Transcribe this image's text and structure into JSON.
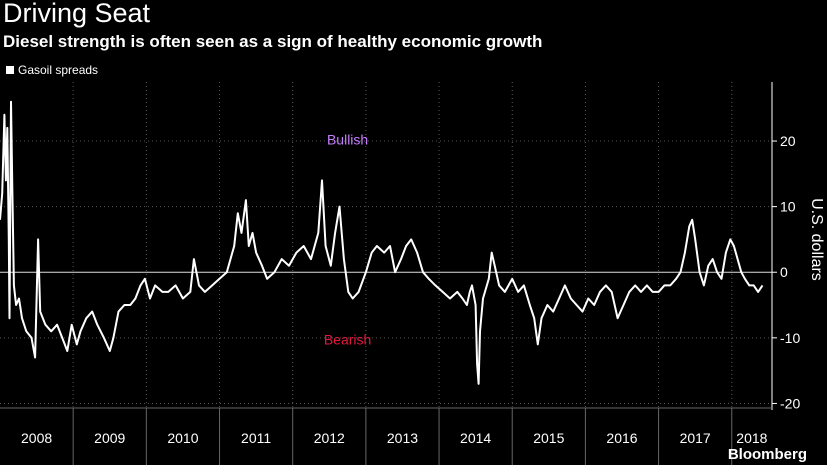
{
  "header": {
    "title": "Driving Seat",
    "subtitle": "Diesel strength is often seen as a sign of healthy economic growth"
  },
  "branding": "Bloomberg",
  "chart_data": {
    "type": "line",
    "title": "Driving Seat",
    "subtitle": "Diesel strength is often seen as a sign of healthy economic growth",
    "ylabel": "U.S. dollars",
    "xlabel": "",
    "ylim": [
      -21,
      29
    ],
    "xlim": [
      2008.0,
      2018.55
    ],
    "yticks": [
      20,
      10,
      0,
      -10,
      -20
    ],
    "year_labels": [
      "2008",
      "2009",
      "2010",
      "2011",
      "2012",
      "2013",
      "2014",
      "2015",
      "2016",
      "2017",
      "2018"
    ],
    "grid": true,
    "legend": "top-left",
    "colors": {
      "background": "#000000",
      "line": "#ffffff",
      "bullish": "#c77dff",
      "bearish": "#e5173f",
      "grid": "#555555"
    },
    "annotations": [
      {
        "text": "Bullish",
        "x": 2012.75,
        "y": 19.5,
        "color": "#c77dff"
      },
      {
        "text": "Bearish",
        "x": 2012.75,
        "y": -11,
        "color": "#e5173f"
      }
    ],
    "series": [
      {
        "name": "Gasoil spreads",
        "points": [
          [
            2008.0,
            8
          ],
          [
            2008.03,
            12
          ],
          [
            2008.06,
            24
          ],
          [
            2008.08,
            14
          ],
          [
            2008.1,
            22
          ],
          [
            2008.12,
            5
          ],
          [
            2008.13,
            -7
          ],
          [
            2008.15,
            26
          ],
          [
            2008.17,
            12
          ],
          [
            2008.19,
            -2
          ],
          [
            2008.22,
            -5
          ],
          [
            2008.26,
            -4
          ],
          [
            2008.3,
            -7
          ],
          [
            2008.36,
            -9
          ],
          [
            2008.43,
            -10
          ],
          [
            2008.48,
            -13
          ],
          [
            2008.52,
            5
          ],
          [
            2008.55,
            -6
          ],
          [
            2008.62,
            -8
          ],
          [
            2008.7,
            -9
          ],
          [
            2008.78,
            -8
          ],
          [
            2008.85,
            -10
          ],
          [
            2008.92,
            -12
          ],
          [
            2008.98,
            -8
          ],
          [
            2009.05,
            -11
          ],
          [
            2009.1,
            -9
          ],
          [
            2009.18,
            -7
          ],
          [
            2009.26,
            -6
          ],
          [
            2009.33,
            -8
          ],
          [
            2009.42,
            -10
          ],
          [
            2009.5,
            -12
          ],
          [
            2009.55,
            -10
          ],
          [
            2009.62,
            -6
          ],
          [
            2009.7,
            -5
          ],
          [
            2009.78,
            -5
          ],
          [
            2009.85,
            -4
          ],
          [
            2009.92,
            -2
          ],
          [
            2009.98,
            -1
          ],
          [
            2010.05,
            -4
          ],
          [
            2010.12,
            -2
          ],
          [
            2010.22,
            -3
          ],
          [
            2010.3,
            -3
          ],
          [
            2010.4,
            -2
          ],
          [
            2010.5,
            -4
          ],
          [
            2010.6,
            -3
          ],
          [
            2010.65,
            2
          ],
          [
            2010.72,
            -2
          ],
          [
            2010.8,
            -3
          ],
          [
            2010.9,
            -2
          ],
          [
            2011.0,
            -1
          ],
          [
            2011.1,
            0
          ],
          [
            2011.2,
            4
          ],
          [
            2011.25,
            9
          ],
          [
            2011.3,
            6
          ],
          [
            2011.36,
            11
          ],
          [
            2011.4,
            4
          ],
          [
            2011.45,
            6
          ],
          [
            2011.5,
            3
          ],
          [
            2011.58,
            1
          ],
          [
            2011.65,
            -1
          ],
          [
            2011.75,
            0
          ],
          [
            2011.85,
            2
          ],
          [
            2011.95,
            1
          ],
          [
            2012.05,
            3
          ],
          [
            2012.15,
            4
          ],
          [
            2012.25,
            2
          ],
          [
            2012.35,
            6
          ],
          [
            2012.4,
            14
          ],
          [
            2012.45,
            4
          ],
          [
            2012.52,
            1
          ],
          [
            2012.58,
            6
          ],
          [
            2012.64,
            10
          ],
          [
            2012.7,
            2
          ],
          [
            2012.76,
            -3
          ],
          [
            2012.82,
            -4
          ],
          [
            2012.9,
            -3
          ],
          [
            2013.0,
            0
          ],
          [
            2013.08,
            3
          ],
          [
            2013.15,
            4
          ],
          [
            2013.25,
            3
          ],
          [
            2013.33,
            4
          ],
          [
            2013.4,
            0
          ],
          [
            2013.48,
            2
          ],
          [
            2013.55,
            4
          ],
          [
            2013.62,
            5
          ],
          [
            2013.7,
            3
          ],
          [
            2013.78,
            0
          ],
          [
            2013.86,
            -1
          ],
          [
            2013.95,
            -2
          ],
          [
            2014.05,
            -3
          ],
          [
            2014.15,
            -4
          ],
          [
            2014.25,
            -3
          ],
          [
            2014.32,
            -4
          ],
          [
            2014.38,
            -5
          ],
          [
            2014.42,
            -3
          ],
          [
            2014.45,
            -2
          ],
          [
            2014.5,
            -5
          ],
          [
            2014.52,
            -14
          ],
          [
            2014.54,
            -17
          ],
          [
            2014.56,
            -9
          ],
          [
            2014.6,
            -4
          ],
          [
            2014.68,
            -1
          ],
          [
            2014.72,
            3
          ],
          [
            2014.76,
            1
          ],
          [
            2014.82,
            -2
          ],
          [
            2014.9,
            -3
          ],
          [
            2015.0,
            -1
          ],
          [
            2015.08,
            -3
          ],
          [
            2015.16,
            -2
          ],
          [
            2015.24,
            -5
          ],
          [
            2015.3,
            -7
          ],
          [
            2015.35,
            -11
          ],
          [
            2015.4,
            -7
          ],
          [
            2015.48,
            -5
          ],
          [
            2015.56,
            -6
          ],
          [
            2015.64,
            -4
          ],
          [
            2015.72,
            -2
          ],
          [
            2015.8,
            -4
          ],
          [
            2015.88,
            -5
          ],
          [
            2015.96,
            -6
          ],
          [
            2016.04,
            -4
          ],
          [
            2016.12,
            -5
          ],
          [
            2016.2,
            -3
          ],
          [
            2016.28,
            -2
          ],
          [
            2016.36,
            -3
          ],
          [
            2016.44,
            -7
          ],
          [
            2016.52,
            -5
          ],
          [
            2016.6,
            -3
          ],
          [
            2016.68,
            -2
          ],
          [
            2016.76,
            -3
          ],
          [
            2016.84,
            -2
          ],
          [
            2016.92,
            -3
          ],
          [
            2017.0,
            -3
          ],
          [
            2017.08,
            -2
          ],
          [
            2017.16,
            -2
          ],
          [
            2017.24,
            -1
          ],
          [
            2017.3,
            0
          ],
          [
            2017.36,
            3
          ],
          [
            2017.42,
            7
          ],
          [
            2017.46,
            8
          ],
          [
            2017.5,
            5
          ],
          [
            2017.56,
            0
          ],
          [
            2017.62,
            -2
          ],
          [
            2017.68,
            1
          ],
          [
            2017.74,
            2
          ],
          [
            2017.8,
            0
          ],
          [
            2017.86,
            -1
          ],
          [
            2017.92,
            3
          ],
          [
            2017.98,
            5
          ],
          [
            2018.03,
            4
          ],
          [
            2018.08,
            2
          ],
          [
            2018.13,
            0
          ],
          [
            2018.18,
            -1
          ],
          [
            2018.24,
            -2
          ],
          [
            2018.3,
            -2
          ],
          [
            2018.36,
            -3
          ],
          [
            2018.42,
            -2
          ]
        ]
      }
    ]
  }
}
